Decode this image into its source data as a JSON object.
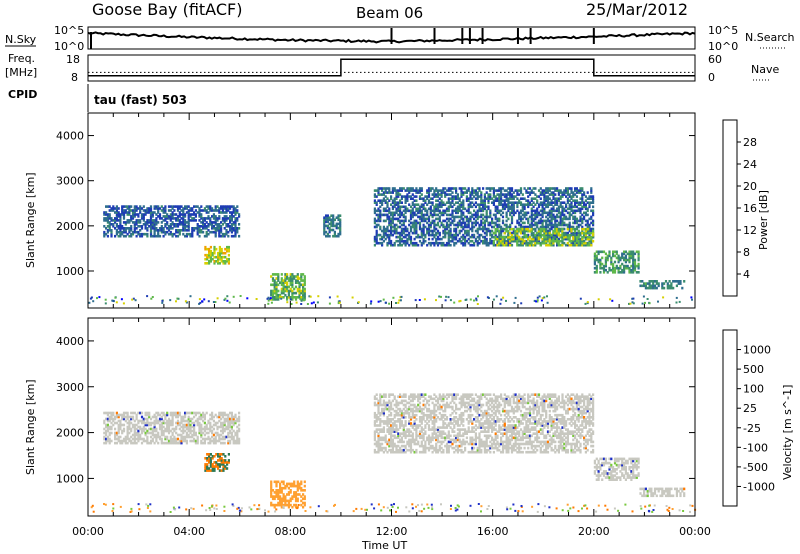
{
  "header": {
    "station": "Goose Bay (fitACF)",
    "beam": "Beam 06",
    "date": "25/Mar/2012"
  },
  "top_panels": {
    "nsky": {
      "label": "N.Sky",
      "ticks": [
        "10^5",
        "10^0"
      ],
      "right_label": "N.Search",
      "right_ticks": [
        "10^5",
        "10^0"
      ]
    },
    "freq": {
      "label": "Freq.",
      "unit": "[MHz]",
      "ticks": [
        "18",
        "8"
      ],
      "right_label": "Nave",
      "right_ticks": [
        "60",
        "0"
      ]
    },
    "cpid": {
      "label": "CPID",
      "mode_text": "tau (fast) 503"
    }
  },
  "colors": {
    "power_scale": [
      "#0000ff",
      "#1e3cb4",
      "#2e6e8e",
      "#3a8c6e",
      "#5fb84a",
      "#d6d000",
      "#f0a000",
      "#ff6a00",
      "#ff0000"
    ],
    "velocity_scale": [
      "#1e2fc8",
      "#2f6bd0",
      "#2e7a55",
      "#78c83c",
      "#c8c8c0",
      "#c8c8c0",
      "#ffa030",
      "#ff7a00",
      "#ff3a00",
      "#ff0000"
    ]
  },
  "chart_data": [
    {
      "type": "line",
      "title": "N.Sky",
      "x": [
        "00:00",
        "04:00",
        "08:00",
        "12:00",
        "16:00",
        "20:00",
        "00:00"
      ],
      "series": [
        {
          "name": "N.Sky",
          "values": [
            3.6,
            2.7,
            2.0,
            1.7,
            2.2,
            2.8,
            3.6
          ]
        }
      ],
      "ylim": [
        0,
        5
      ]
    },
    {
      "type": "line",
      "title": "Freq.",
      "x": [
        "00:00",
        "10:00",
        "10:00",
        "20:00",
        "20:00",
        "24:00"
      ],
      "series": [
        {
          "name": "Freq.",
          "values": [
            10,
            10,
            16.4,
            16.4,
            10,
            10
          ]
        },
        {
          "name": "Nave",
          "values": [
            20,
            20,
            20,
            20,
            20,
            20
          ]
        }
      ],
      "ylim": [
        8,
        18
      ]
    },
    {
      "type": "heatmap",
      "title": "Power [dB]",
      "xlabel": "",
      "ylabel": "Slant Range [km]",
      "x_ticks": [
        "00:00",
        "04:00",
        "08:00",
        "12:00",
        "16:00",
        "20:00",
        "00:00"
      ],
      "y_ticks": [
        "1000",
        "2000",
        "3000",
        "4000"
      ],
      "xlim": [
        0,
        24
      ],
      "ylim": [
        180,
        4500
      ],
      "colorbar": {
        "label": "Power [dB]",
        "ticks": [
          "4",
          "8",
          "12",
          "16",
          "20",
          "24",
          "28"
        ],
        "range": [
          0,
          30
        ]
      },
      "echo_regions": [
        {
          "t0": 0.6,
          "t1": 6.0,
          "r0": 1800,
          "r1": 2500,
          "value": 6
        },
        {
          "t0": 4.6,
          "t1": 5.6,
          "r0": 1200,
          "r1": 1600,
          "value": 18
        },
        {
          "t0": 7.2,
          "t1": 8.6,
          "r0": 400,
          "r1": 1000,
          "value": 14
        },
        {
          "t0": 9.3,
          "t1": 10.0,
          "r0": 1800,
          "r1": 2300,
          "value": 9
        },
        {
          "t0": 11.3,
          "t1": 20.0,
          "r0": 1600,
          "r1": 2900,
          "value": 7
        },
        {
          "t0": 16.0,
          "t1": 20.0,
          "r0": 1600,
          "r1": 2000,
          "value": 15
        },
        {
          "t0": 20.0,
          "t1": 21.8,
          "r0": 1000,
          "r1": 1500,
          "value": 12
        },
        {
          "t0": 21.8,
          "t1": 23.6,
          "r0": 650,
          "r1": 850,
          "value": 10
        }
      ]
    },
    {
      "type": "heatmap",
      "title": "Velocity [m s^-1]",
      "xlabel": "Time UT",
      "ylabel": "Slant Range [km]",
      "x_ticks": [
        "00:00",
        "04:00",
        "08:00",
        "12:00",
        "16:00",
        "20:00",
        "00:00"
      ],
      "y_ticks": [
        "1000",
        "2000",
        "3000",
        "4000"
      ],
      "xlim": [
        0,
        24
      ],
      "ylim": [
        180,
        4500
      ],
      "colorbar": {
        "label": "Velocity [m s^-1]",
        "ticks": [
          "1000",
          "500",
          "100",
          "25",
          "-25",
          "-100",
          "-500",
          "-1000"
        ]
      },
      "echo_regions": [
        {
          "t0": 0.6,
          "t1": 6.0,
          "r0": 1800,
          "r1": 2500,
          "value": 0
        },
        {
          "t0": 4.6,
          "t1": 5.6,
          "r0": 1200,
          "r1": 1600,
          "value": -150
        },
        {
          "t0": 7.2,
          "t1": 8.6,
          "r0": 400,
          "r1": 1000,
          "value": -250
        },
        {
          "t0": 11.3,
          "t1": 20.0,
          "r0": 1600,
          "r1": 2900,
          "value": 0
        },
        {
          "t0": 20.0,
          "t1": 21.8,
          "r0": 1000,
          "r1": 1500,
          "value": 0
        },
        {
          "t0": 21.8,
          "t1": 23.6,
          "r0": 650,
          "r1": 850,
          "value": 0
        }
      ]
    }
  ]
}
